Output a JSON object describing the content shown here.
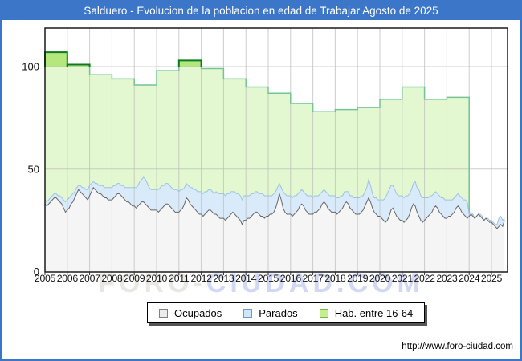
{
  "title": "Salduero - Evolucion de la poblacion en edad de Trabajar Agosto de 2025",
  "watermark": {
    "left": "FORO-",
    "right": "CIUDAD.COM"
  },
  "footer_url": "http://www.foro-ciudad.com",
  "colors": {
    "frame_border": "#3b76c8",
    "title_bar_bg": "#3b76c8",
    "title_text": "#ffffff",
    "gridline": "#bdbdbd",
    "plot_border": "#1a1a1a",
    "ocupados_fill": "#f5f5f5",
    "ocupados_line": "#666666",
    "parados_fill": "#d9ebfb",
    "parados_line": "#9cc2e5",
    "hab_fill": "#e3f8d0",
    "hab_fill_above_100": "#b4e87c",
    "hab_line": "#74c495",
    "hab_line_above_100": "#0b7b20"
  },
  "legend": {
    "items": [
      {
        "label": "Ocupados",
        "fill": "#ececec",
        "border": "#808080"
      },
      {
        "label": "Parados",
        "fill": "#cfe5f8",
        "border": "#6c9cc8"
      },
      {
        "label": "Hab. entre 16-64",
        "fill": "#c6ee8e",
        "border": "#74b544"
      }
    ]
  },
  "chart_data": {
    "type": "area",
    "title": "Salduero - Evolucion de la poblacion en edad de Trabajar Agosto de 2025",
    "x_range": {
      "start": "2005-01",
      "end": "2025-08"
    },
    "x_ticks": [
      2005,
      2006,
      2007,
      2008,
      2009,
      2010,
      2011,
      2012,
      2013,
      2014,
      2015,
      2016,
      2017,
      2018,
      2019,
      2020,
      2021,
      2022,
      2023,
      2024,
      2025
    ],
    "y_ticks": [
      0,
      50,
      100
    ],
    "ylim": [
      0,
      118
    ],
    "grid": true,
    "legend_position": "bottom",
    "series": [
      {
        "name": "Ocupados",
        "type": "monthly",
        "values": [
          33,
          32,
          33,
          34,
          35,
          36,
          36,
          35,
          34,
          33,
          31,
          29,
          30,
          31,
          33,
          34,
          36,
          38,
          40,
          39,
          38,
          37,
          36,
          35,
          37,
          39,
          41,
          40,
          39,
          38,
          38,
          37,
          36,
          36,
          35,
          35,
          35,
          36,
          37,
          38,
          38,
          37,
          36,
          35,
          34,
          34,
          33,
          32,
          32,
          31,
          32,
          33,
          34,
          34,
          33,
          32,
          31,
          30,
          30,
          30,
          30,
          29,
          30,
          31,
          32,
          33,
          33,
          32,
          31,
          30,
          29,
          29,
          29,
          30,
          31,
          33,
          36,
          35,
          33,
          32,
          31,
          30,
          29,
          28,
          28,
          27,
          28,
          29,
          30,
          30,
          29,
          28,
          28,
          27,
          26,
          26,
          26,
          25,
          26,
          27,
          28,
          29,
          28,
          27,
          26,
          25,
          23,
          25,
          25,
          26,
          26,
          27,
          28,
          29,
          29,
          28,
          27,
          27,
          26,
          27,
          27,
          28,
          28,
          29,
          31,
          34,
          38,
          35,
          31,
          29,
          28,
          28,
          28,
          27,
          28,
          29,
          30,
          32,
          33,
          32,
          30,
          29,
          28,
          28,
          28,
          29,
          29,
          30,
          31,
          33,
          34,
          33,
          31,
          30,
          29,
          29,
          29,
          28,
          29,
          30,
          31,
          33,
          34,
          33,
          31,
          30,
          29,
          28,
          28,
          28,
          29,
          30,
          32,
          34,
          36,
          34,
          31,
          29,
          28,
          27,
          27,
          26,
          25,
          24,
          25,
          27,
          30,
          31,
          29,
          27,
          26,
          25,
          25,
          24,
          25,
          26,
          28,
          31,
          33,
          32,
          29,
          27,
          25,
          24,
          25,
          26,
          27,
          28,
          29,
          31,
          32,
          31,
          29,
          28,
          27,
          26,
          26,
          27,
          27,
          28,
          29,
          31,
          32,
          31,
          29,
          28,
          27,
          26,
          27,
          28,
          27,
          26,
          27,
          28,
          27,
          26,
          25,
          26,
          25,
          24,
          24,
          23,
          22,
          21,
          22,
          23,
          22,
          25
        ]
      },
      {
        "name": "Parados",
        "type": "monthly",
        "stacked_on": "Ocupados",
        "values": [
          2,
          2,
          2,
          2,
          2,
          2,
          2,
          2,
          3,
          3,
          4,
          5,
          5,
          5,
          4,
          4,
          3,
          3,
          2,
          3,
          3,
          4,
          4,
          5,
          5,
          4,
          3,
          3,
          4,
          4,
          4,
          5,
          5,
          5,
          6,
          6,
          6,
          6,
          5,
          5,
          5,
          5,
          6,
          6,
          7,
          7,
          8,
          9,
          9,
          10,
          10,
          11,
          11,
          12,
          12,
          11,
          10,
          10,
          10,
          10,
          10,
          11,
          11,
          11,
          10,
          10,
          10,
          10,
          10,
          10,
          11,
          11,
          10,
          10,
          9,
          8,
          7,
          7,
          8,
          9,
          9,
          10,
          10,
          11,
          11,
          11,
          11,
          10,
          10,
          10,
          10,
          10,
          11,
          11,
          12,
          12,
          12,
          12,
          12,
          11,
          11,
          10,
          11,
          11,
          12,
          12,
          12,
          12,
          12,
          11,
          11,
          11,
          10,
          10,
          10,
          10,
          11,
          11,
          11,
          10,
          10,
          9,
          9,
          9,
          8,
          7,
          5,
          6,
          8,
          9,
          9,
          9,
          9,
          9,
          9,
          8,
          8,
          7,
          7,
          7,
          8,
          8,
          9,
          9,
          8,
          8,
          8,
          7,
          7,
          6,
          6,
          6,
          7,
          7,
          8,
          8,
          8,
          8,
          7,
          7,
          6,
          6,
          5,
          6,
          6,
          7,
          7,
          8,
          8,
          8,
          8,
          7,
          7,
          7,
          9,
          8,
          7,
          7,
          8,
          8,
          8,
          9,
          10,
          12,
          13,
          13,
          12,
          11,
          11,
          11,
          11,
          12,
          12,
          12,
          12,
          11,
          10,
          9,
          10,
          12,
          12,
          13,
          12,
          12,
          11,
          10,
          9,
          9,
          8,
          7,
          7,
          7,
          8,
          8,
          9,
          9,
          9,
          8,
          8,
          7,
          7,
          6,
          6,
          6,
          7,
          7,
          8,
          8,
          1,
          1,
          1,
          0,
          0,
          0,
          1,
          1,
          0,
          0,
          1,
          1,
          1,
          1,
          1,
          2,
          4,
          4,
          3,
          1
        ]
      },
      {
        "name": "Hab. entre 16-64",
        "type": "annual_step",
        "years": [
          2005,
          2006,
          2007,
          2008,
          2009,
          2010,
          2011,
          2012,
          2013,
          2014,
          2015,
          2016,
          2017,
          2018,
          2019,
          2020,
          2021,
          2022,
          2023
        ],
        "values": [
          107,
          101,
          96,
          94,
          91,
          98,
          103,
          99,
          94,
          90,
          87,
          82,
          78,
          79,
          80,
          84,
          90,
          84,
          85
        ]
      }
    ]
  }
}
